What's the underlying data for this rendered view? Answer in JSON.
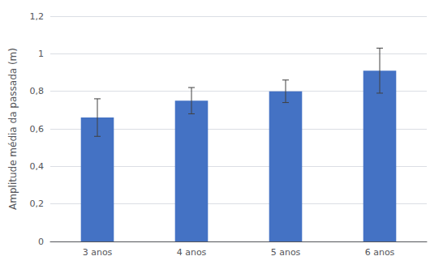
{
  "chart_data": {
    "type": "bar",
    "categories": [
      "3 anos",
      "4 anos",
      "5 anos",
      "6 anos"
    ],
    "values": [
      0.66,
      0.75,
      0.8,
      0.91
    ],
    "errors": [
      0.1,
      0.07,
      0.06,
      0.12
    ],
    "color": "#4472C4",
    "ylabel": "Amplitude média da passada (m)",
    "ylim": [
      0,
      1.2
    ],
    "yticks": [
      0,
      {
        "value": 0.2,
        "label": "0,2"
      },
      {
        "value": 0.4,
        "label": "0,4"
      },
      {
        "value": 0.6,
        "label": "0,6"
      },
      {
        "value": 0.8,
        "label": "0,8"
      },
      1,
      {
        "value": 1.2,
        "label": "1,2"
      }
    ],
    "grid": true
  }
}
